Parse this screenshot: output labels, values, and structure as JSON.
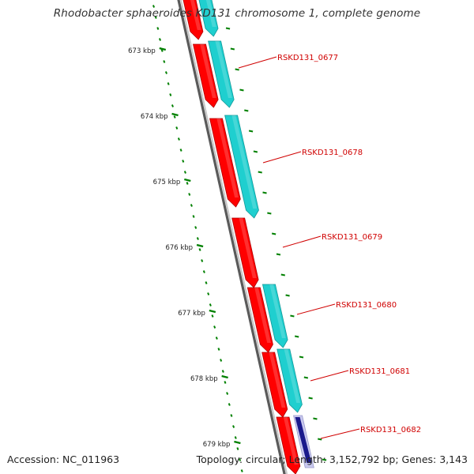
{
  "title": "Rhodobacter sphaeroides KD131 chromosome 1, complete genome",
  "footer": {
    "accession": "Accession: NC_011963",
    "summary": "Topology: circular; Length: 3,152,792 bp; Genes: 3,143"
  },
  "colors": {
    "background": "#ffffff",
    "backbone": "#8c8c8c",
    "forward_gene": "#ff0000",
    "reverse_gene": "#1fcfcf",
    "rna_gene": "#1a1a8c",
    "tick": "#008000",
    "label_text": "#d00000",
    "label_line": "#d00000"
  },
  "kbp_ticks": [
    "673 kbp",
    "674 kbp",
    "675 kbp",
    "676 kbp",
    "677 kbp",
    "678 kbp",
    "679 kbp"
  ],
  "gene_labels": [
    "RSKD131_0677",
    "RSKD131_0678",
    "RSKD131_0679",
    "RSKD131_0680",
    "RSKD131_0681",
    "RSKD131_0682"
  ]
}
